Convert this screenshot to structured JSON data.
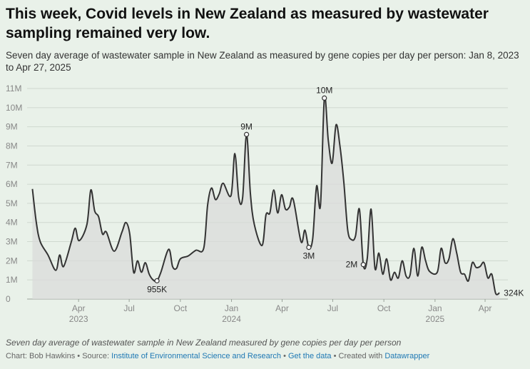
{
  "title": "This week, Covid levels in New Zealand as measured by wastewater sampling remained very low.",
  "subtitle": "Seven day average of wastewater sample in New Zealand as measured by gene copies per day per person: Jan 8, 2023 to Apr 27, 2025",
  "note": "Seven day average of wastewater sample in New Zealand measured by gene copies per day per person",
  "footer": {
    "chart_by": "Chart: Bob Hawkins",
    "sep1": " • ",
    "source_label": "Source: ",
    "source_link": "Institute of Environmental Science and Research",
    "sep2": " • ",
    "get_data": "Get the data",
    "sep3": " • ",
    "created_with": "Created with ",
    "datawrapper": "Datawrapper"
  },
  "colors": {
    "background": "#e9f1e9",
    "line": "#333333",
    "area": "#d9dbd9",
    "grid": "#cfd8cf",
    "link": "#1e78b4"
  },
  "chart_data": {
    "type": "area",
    "title": "This week, Covid levels in New Zealand as measured by wastewater sampling remained very low.",
    "ylim": [
      0,
      11000000
    ],
    "y_ticks": [
      {
        "value": 0,
        "label": "0"
      },
      {
        "value": 1000000,
        "label": "1M"
      },
      {
        "value": 2000000,
        "label": "2M"
      },
      {
        "value": 3000000,
        "label": "3M"
      },
      {
        "value": 4000000,
        "label": "4M"
      },
      {
        "value": 5000000,
        "label": "5M"
      },
      {
        "value": 6000000,
        "label": "6M"
      },
      {
        "value": 7000000,
        "label": "7M"
      },
      {
        "value": 8000000,
        "label": "8M"
      },
      {
        "value": 9000000,
        "label": "9M"
      },
      {
        "value": 10000000,
        "label": "10M"
      },
      {
        "value": 11000000,
        "label": "11M"
      }
    ],
    "xlim": [
      "2023-01-01",
      "2025-05-12"
    ],
    "x_ticks": [
      {
        "date": "2023-04-01",
        "label": "Apr",
        "year": "2023"
      },
      {
        "date": "2023-07-01",
        "label": "Jul",
        "year": ""
      },
      {
        "date": "2023-10-01",
        "label": "Oct",
        "year": ""
      },
      {
        "date": "2024-01-01",
        "label": "Jan",
        "year": "2024"
      },
      {
        "date": "2024-04-01",
        "label": "Apr",
        "year": ""
      },
      {
        "date": "2024-07-01",
        "label": "Jul",
        "year": ""
      },
      {
        "date": "2024-10-01",
        "label": "Oct",
        "year": ""
      },
      {
        "date": "2025-01-01",
        "label": "Jan",
        "year": "2025"
      },
      {
        "date": "2025-04-01",
        "label": "Apr",
        "year": ""
      }
    ],
    "grid": true,
    "series": [
      {
        "points": [
          [
            "2023-01-08",
            5.75
          ],
          [
            "2023-01-15",
            4.0
          ],
          [
            "2023-01-22",
            3.0
          ],
          [
            "2023-02-05",
            2.3
          ],
          [
            "2023-02-19",
            1.5
          ],
          [
            "2023-02-26",
            2.3
          ],
          [
            "2023-03-05",
            1.7
          ],
          [
            "2023-03-19",
            3.0
          ],
          [
            "2023-03-26",
            3.7
          ],
          [
            "2023-04-02",
            3.05
          ],
          [
            "2023-04-16",
            3.9
          ],
          [
            "2023-04-23",
            5.7
          ],
          [
            "2023-04-30",
            4.6
          ],
          [
            "2023-05-07",
            4.3
          ],
          [
            "2023-05-14",
            3.4
          ],
          [
            "2023-05-21",
            3.5
          ],
          [
            "2023-06-04",
            2.5
          ],
          [
            "2023-06-18",
            3.5
          ],
          [
            "2023-06-25",
            4.0
          ],
          [
            "2023-07-02",
            3.4
          ],
          [
            "2023-07-09",
            1.4
          ],
          [
            "2023-07-16",
            2.0
          ],
          [
            "2023-07-23",
            1.4
          ],
          [
            "2023-07-30",
            1.9
          ],
          [
            "2023-08-06",
            1.3
          ],
          [
            "2023-08-13",
            1.0
          ],
          [
            "2023-08-20",
            0.955
          ],
          [
            "2023-08-27",
            1.4
          ],
          [
            "2023-09-10",
            2.6
          ],
          [
            "2023-09-17",
            1.7
          ],
          [
            "2023-09-24",
            1.6
          ],
          [
            "2023-10-01",
            2.1
          ],
          [
            "2023-10-15",
            2.25
          ],
          [
            "2023-10-29",
            2.55
          ],
          [
            "2023-11-12",
            2.65
          ],
          [
            "2023-11-19",
            4.9
          ],
          [
            "2023-11-26",
            5.8
          ],
          [
            "2023-12-03",
            5.2
          ],
          [
            "2023-12-10",
            5.5
          ],
          [
            "2023-12-17",
            6.05
          ],
          [
            "2023-12-31",
            5.4
          ],
          [
            "2024-01-07",
            7.6
          ],
          [
            "2024-01-14",
            5.3
          ],
          [
            "2024-01-21",
            5.3
          ],
          [
            "2024-01-28",
            8.6
          ],
          [
            "2024-02-04",
            5.5
          ],
          [
            "2024-02-11",
            3.9
          ],
          [
            "2024-02-25",
            2.8
          ],
          [
            "2024-03-03",
            4.4
          ],
          [
            "2024-03-10",
            4.5
          ],
          [
            "2024-03-17",
            5.7
          ],
          [
            "2024-03-24",
            4.5
          ],
          [
            "2024-03-31",
            5.45
          ],
          [
            "2024-04-07",
            4.7
          ],
          [
            "2024-04-14",
            4.8
          ],
          [
            "2024-04-21",
            5.2
          ],
          [
            "2024-05-05",
            3.0
          ],
          [
            "2024-05-12",
            3.6
          ],
          [
            "2024-05-19",
            2.7
          ],
          [
            "2024-05-26",
            3.15
          ],
          [
            "2024-06-02",
            5.9
          ],
          [
            "2024-06-09",
            4.9
          ],
          [
            "2024-06-16",
            10.5
          ],
          [
            "2024-06-23",
            8.3
          ],
          [
            "2024-06-30",
            7.1
          ],
          [
            "2024-07-07",
            9.1
          ],
          [
            "2024-07-14",
            8.0
          ],
          [
            "2024-07-21",
            6.1
          ],
          [
            "2024-07-28",
            3.6
          ],
          [
            "2024-08-04",
            3.1
          ],
          [
            "2024-08-11",
            3.3
          ],
          [
            "2024-08-18",
            4.7
          ],
          [
            "2024-08-25",
            1.8
          ],
          [
            "2024-09-01",
            2.1
          ],
          [
            "2024-09-08",
            4.7
          ],
          [
            "2024-09-15",
            1.6
          ],
          [
            "2024-09-22",
            2.4
          ],
          [
            "2024-09-29",
            1.3
          ],
          [
            "2024-10-06",
            2.1
          ],
          [
            "2024-10-13",
            1.0
          ],
          [
            "2024-10-20",
            1.4
          ],
          [
            "2024-10-27",
            1.1
          ],
          [
            "2024-11-03",
            2.0
          ],
          [
            "2024-11-10",
            1.2
          ],
          [
            "2024-11-17",
            1.25
          ],
          [
            "2024-11-24",
            2.65
          ],
          [
            "2024-12-01",
            1.2
          ],
          [
            "2024-12-08",
            2.7
          ],
          [
            "2024-12-15",
            2.0
          ],
          [
            "2024-12-22",
            1.45
          ],
          [
            "2025-01-05",
            1.4
          ],
          [
            "2025-01-12",
            2.65
          ],
          [
            "2025-01-19",
            1.9
          ],
          [
            "2025-01-26",
            2.1
          ],
          [
            "2025-02-02",
            3.15
          ],
          [
            "2025-02-09",
            2.4
          ],
          [
            "2025-02-16",
            1.4
          ],
          [
            "2025-02-23",
            1.3
          ],
          [
            "2025-03-02",
            0.95
          ],
          [
            "2025-03-09",
            1.9
          ],
          [
            "2025-03-16",
            1.65
          ],
          [
            "2025-03-23",
            1.7
          ],
          [
            "2025-03-30",
            1.9
          ],
          [
            "2025-04-06",
            1.1
          ],
          [
            "2025-04-13",
            1.3
          ],
          [
            "2025-04-20",
            0.3
          ],
          [
            "2025-04-27",
            0.324
          ]
        ],
        "unit": "M"
      }
    ],
    "annotations": [
      {
        "date": "2023-08-20",
        "value": 0.955,
        "label": "955K",
        "pos": "below",
        "marker": true
      },
      {
        "date": "2024-01-28",
        "value": 8.6,
        "label": "9M",
        "pos": "above",
        "marker": true
      },
      {
        "date": "2024-05-19",
        "value": 2.7,
        "label": "3M",
        "pos": "below",
        "marker": true
      },
      {
        "date": "2024-06-16",
        "value": 10.5,
        "label": "10M",
        "pos": "above",
        "marker": true
      },
      {
        "date": "2024-08-25",
        "value": 1.8,
        "label": "2M",
        "pos": "left",
        "marker": true
      },
      {
        "date": "2025-04-27",
        "value": 0.324,
        "label": "324K",
        "pos": "right",
        "marker": false
      }
    ]
  }
}
